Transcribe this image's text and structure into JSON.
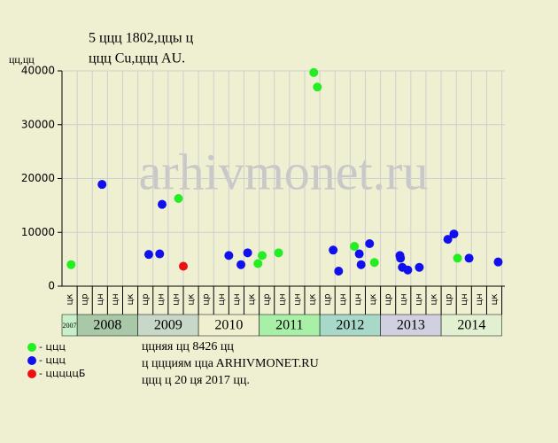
{
  "chart_data": {
    "type": "scatter",
    "title": "5 ццц 1802,ццы ц",
    "subtitle": "ццц Cu,ццц AU.",
    "y_label": "цц,цц",
    "watermark": "arhivmonet.ru",
    "xlim": [
      2007.75,
      2015.05
    ],
    "ylim": [
      0,
      40000
    ],
    "yticks": [
      0,
      10000,
      20000,
      30000,
      40000
    ],
    "grid": true,
    "years": [
      "2007",
      "2008",
      "2009",
      "2010",
      "2011",
      "2012",
      "2013",
      "2014"
    ],
    "year_colors": [
      "#c8f0c8",
      "#a8c8a8",
      "#c8d8c8",
      "#f0f0d0",
      "#a8f0a8",
      "#a8d8c8",
      "#d0d0e0",
      "#e0f0d0"
    ],
    "quarter_labels": [
      "цк",
      "цр",
      "цн",
      "цн",
      "цк",
      "цр",
      "цн",
      "цн",
      "цк",
      "цр",
      "цн",
      "цн",
      "цк",
      "цр",
      "цн",
      "цн",
      "цк",
      "цр",
      "цн",
      "цн",
      "цк",
      "цр",
      "цн",
      "цн",
      "цк",
      "цр",
      "цн",
      "цн",
      "цк"
    ],
    "series": [
      {
        "name": "- ццц",
        "color": "#22ee22",
        "x": [
          2007.9,
          2009.67,
          2010.98,
          2011.05,
          2011.32,
          2011.9,
          2011.96,
          2012.57,
          2012.9,
          2014.27
        ],
        "values": [
          4000,
          16300,
          4200,
          5700,
          6200,
          39700,
          37000,
          7400,
          4400,
          5200
        ]
      },
      {
        "name": "- ццц",
        "color": "#1010ee",
        "x": [
          2008.41,
          2009.18,
          2009.36,
          2009.4,
          2010.5,
          2010.7,
          2010.81,
          2012.22,
          2012.31,
          2012.65,
          2012.68,
          2012.82,
          2013.32,
          2013.33,
          2013.36,
          2013.45,
          2013.64,
          2014.11,
          2014.21,
          2014.46,
          2014.94
        ],
        "values": [
          18900,
          5900,
          6000,
          15200,
          5700,
          4000,
          6200,
          6700,
          2800,
          6000,
          4000,
          7900,
          5700,
          5200,
          3500,
          3000,
          3500,
          8700,
          9700,
          5200,
          4500
        ]
      },
      {
        "name": "- цццццБ",
        "color": "#ee1010",
        "x": [
          2009.75
        ],
        "values": [
          3700
        ]
      }
    ],
    "notes": [
      "ццняя цц 8426 цц",
      "ц ццциям ццa ARHIVMONET.RU",
      "ццц ц 20 ця 2017 цц."
    ]
  }
}
